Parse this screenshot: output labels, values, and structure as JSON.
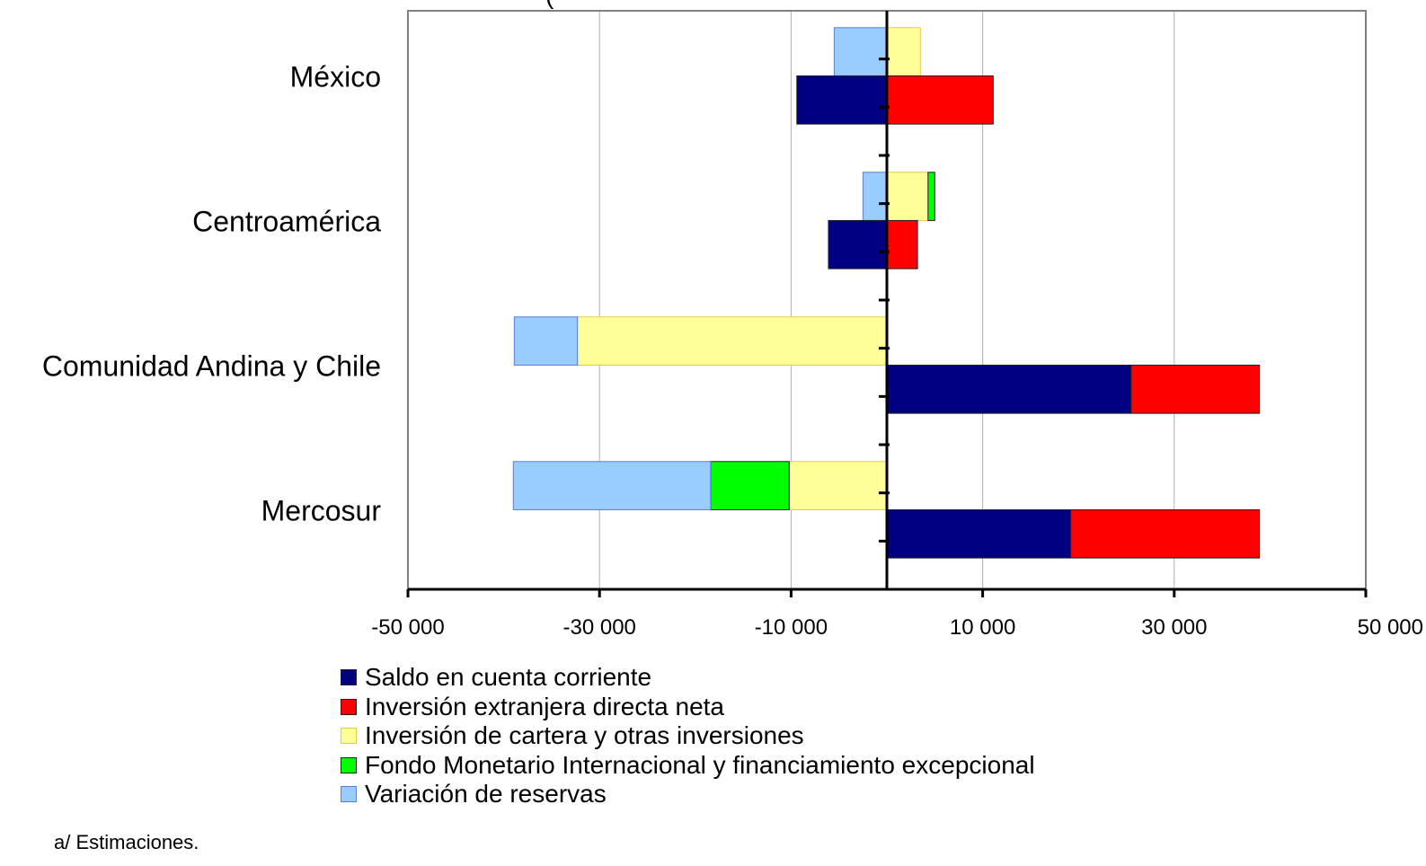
{
  "chart_data": {
    "type": "bar",
    "orientation": "horizontal",
    "stacked": true,
    "title": "(",
    "categories": [
      "México",
      "Centroamérica",
      "Comunidad Andina y Chile",
      "Mercosur"
    ],
    "rows": {
      "positive": [
        "Saldo en cuenta corriente",
        "Inversión extranjera directa neta"
      ],
      "negative": [
        "Inversión de cartera y otras inversiones",
        "Fondo Monetario Internacional y financiamiento excepcional",
        "Variación de reservas"
      ]
    },
    "series": [
      {
        "name": "Saldo en cuenta corriente",
        "color": "#000080",
        "values": [
          -9400,
          -6100,
          25500,
          19200
        ]
      },
      {
        "name": "Inversión extranjera directa neta",
        "color": "#ff0000",
        "values": [
          11100,
          3200,
          13400,
          19700
        ]
      },
      {
        "name": "Inversión de cartera y otras inversiones",
        "color": "#ffff99",
        "values": [
          3500,
          4300,
          -32300,
          -10200
        ]
      },
      {
        "name": "Fondo Monetario Internacional y financiamiento excepcional",
        "color": "#00ff00",
        "values": [
          0,
          700,
          0,
          -8200
        ]
      },
      {
        "name": "Variación de reservas",
        "color": "#99ccff",
        "values": [
          -5500,
          -2500,
          -6600,
          -20600
        ]
      }
    ],
    "xlim": [
      -50000,
      50000
    ],
    "xticks": [
      -50000,
      -30000,
      -10000,
      10000,
      30000,
      50000
    ],
    "xtick_labels": [
      "-50 000",
      "-30 000",
      "-10 000",
      "10 000",
      "30 000",
      "50 000"
    ],
    "grid": true,
    "legend_position": "bottom"
  },
  "footnote": "a/ Estimaciones."
}
